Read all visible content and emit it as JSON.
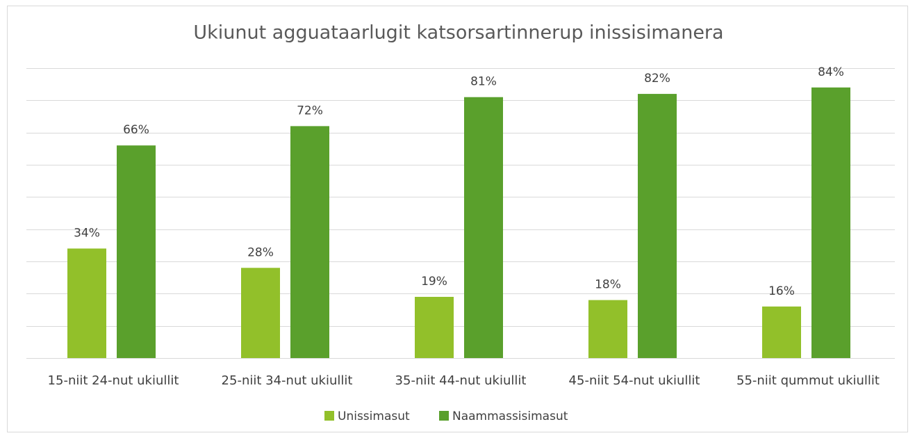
{
  "chart_data": {
    "type": "bar",
    "title": "Ukiunut agguataarlugit katsorsartinnerup inissisimanera",
    "categories": [
      "15-niit 24-nut ukiullit",
      "25-niit 34-nut ukiullit",
      "35-niit 44-nut ukiullit",
      "45-niit 54-nut ukiullit",
      "55-niit qummut ukiullit"
    ],
    "series": [
      {
        "name": "Unissimasut",
        "color": "#92c02a",
        "values": [
          34,
          28,
          19,
          18,
          16
        ],
        "value_labels": [
          "34%",
          "28%",
          "19%",
          "18%",
          "16%"
        ]
      },
      {
        "name": "Naammassisimasut",
        "color": "#5aa02c",
        "values": [
          66,
          72,
          81,
          82,
          84
        ],
        "value_labels": [
          "66%",
          "72%",
          "81%",
          "82%",
          "84%"
        ]
      }
    ],
    "ylim": [
      0,
      90
    ],
    "yticks": [
      0,
      10,
      20,
      30,
      40,
      50,
      60,
      70,
      80,
      90
    ],
    "grid": true,
    "legend": "bottom"
  }
}
